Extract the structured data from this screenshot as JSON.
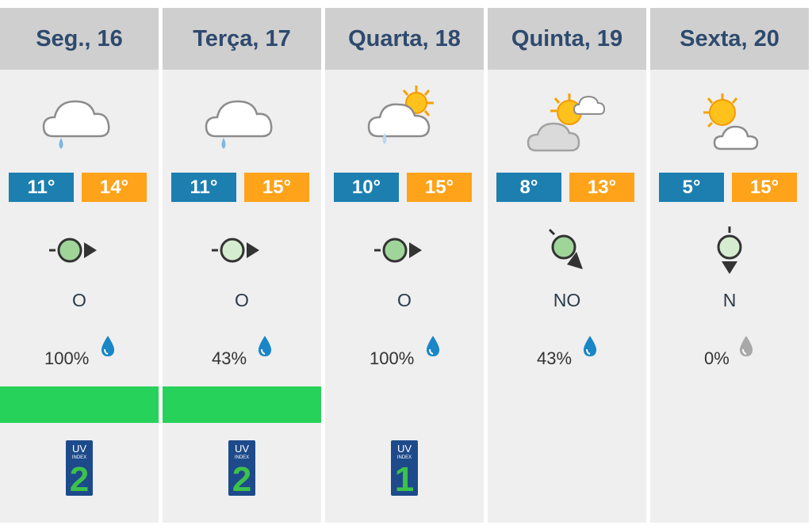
{
  "days": [
    {
      "label": "Seg., 16",
      "icon": "cloud-drizzle-icon",
      "min": "11°",
      "max": "14°",
      "wind_icon": "wind-west-icon",
      "wind_dir": "O",
      "rain": "100%",
      "rain_drop": "blue",
      "pollen": true,
      "uv": "2"
    },
    {
      "label": "Terça, 17",
      "icon": "cloud-drizzle-icon",
      "min": "11°",
      "max": "15°",
      "wind_icon": "wind-west-icon",
      "wind_dir": "O",
      "rain": "43%",
      "rain_drop": "blue",
      "pollen": true,
      "uv": "2"
    },
    {
      "label": "Quarta, 18",
      "icon": "partly-cloudy-drizzle-icon",
      "min": "10°",
      "max": "15°",
      "wind_icon": "wind-west-icon",
      "wind_dir": "O",
      "rain": "100%",
      "rain_drop": "blue",
      "pollen": false,
      "uv": "1"
    },
    {
      "label": "Quinta, 19",
      "icon": "sun-clouds-icon",
      "min": "8°",
      "max": "13°",
      "wind_icon": "wind-northwest-icon",
      "wind_dir": "NO",
      "rain": "43%",
      "rain_drop": "blue",
      "pollen": false,
      "uv": null
    },
    {
      "label": "Sexta, 20",
      "icon": "partly-sunny-icon",
      "min": "5°",
      "max": "15°",
      "wind_icon": "wind-north-icon",
      "wind_dir": "N",
      "rain": "0%",
      "rain_drop": "gray",
      "pollen": false,
      "uv": null
    }
  ],
  "uv_badge": {
    "line1": "UV",
    "line2": "INDEX"
  },
  "colors": {
    "header_bg": "#cfcfcf",
    "header_text": "#2e4a6e",
    "col_bg": "#efefef",
    "temp_min": "#1c7fb0",
    "temp_max": "#ffa31a",
    "pollen_bar": "#27d25a",
    "rain_drop_blue": "#1a86c8",
    "rain_drop_gray": "#a8a8a8",
    "uv_bg": "#1d4a8a",
    "uv_number": "#3cc14a"
  }
}
